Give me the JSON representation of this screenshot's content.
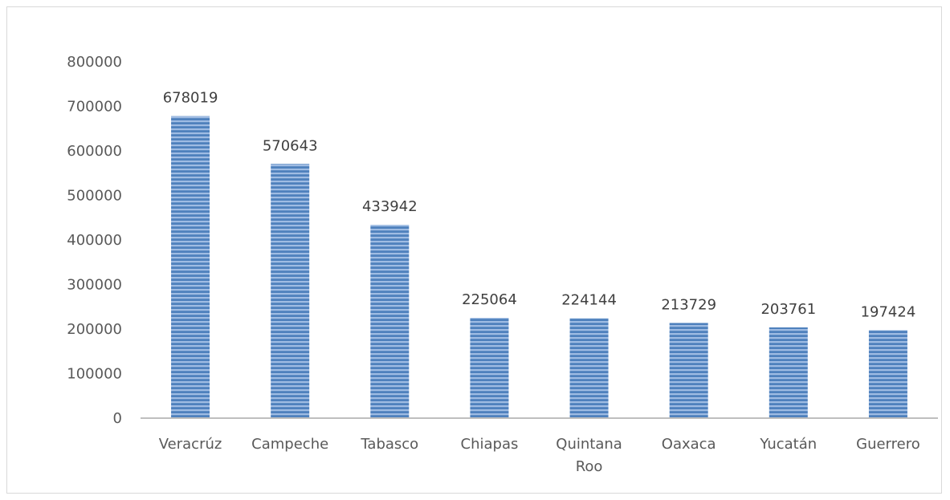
{
  "chart_data": {
    "type": "bar",
    "title": "",
    "xlabel": "",
    "ylabel": "",
    "ylim": [
      0,
      800000
    ],
    "yticks": [
      "0",
      "100000",
      "200000",
      "300000",
      "400000",
      "500000",
      "600000",
      "700000",
      "800000"
    ],
    "categories": [
      [
        "Veracrúz"
      ],
      [
        "Campeche"
      ],
      [
        "Tabasco"
      ],
      [
        "Chiapas"
      ],
      [
        "Quintana",
        "Roo"
      ],
      [
        "Oaxaca"
      ],
      [
        "Yucatán"
      ],
      [
        "Guerrero"
      ]
    ],
    "values": [
      678019,
      570643,
      433942,
      225064,
      224144,
      213729,
      203761,
      197424
    ],
    "data_labels": [
      "678019",
      "570643",
      "433942",
      "225064",
      "224144",
      "213729",
      "203761",
      "197424"
    ],
    "grid": false,
    "legend": "none",
    "colors": {
      "bar_fill": "#4f81bd",
      "bar_stripe": "#9fbce3",
      "axis": "#bfbfbf",
      "text": "#595959"
    }
  }
}
